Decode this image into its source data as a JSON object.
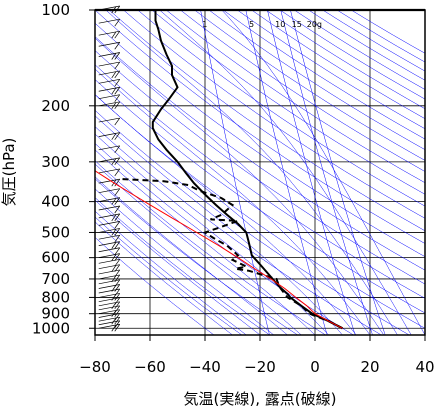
{
  "chart_data": {
    "type": "line",
    "xlabel": "気温(実線), 露点(破線)",
    "ylabel": "気圧(hPa)",
    "xlim": [
      -80,
      40
    ],
    "ylim": [
      1050,
      100
    ],
    "y_scale": "log",
    "grid": true,
    "x_ticks": [
      "−80",
      "−60",
      "−40",
      "−20",
      "0",
      "20",
      "40"
    ],
    "x_tick_values": [
      -80,
      -60,
      -40,
      -20,
      0,
      20,
      40
    ],
    "y_ticks": [
      "100",
      "200",
      "300",
      "400",
      "500",
      "600",
      "700",
      "800",
      "900",
      "1000"
    ],
    "y_tick_values": [
      100,
      200,
      300,
      400,
      500,
      600,
      700,
      800,
      900,
      1000
    ],
    "mixing_ratio_labels": [
      "1",
      "5",
      "10",
      "15",
      "20g"
    ],
    "series": [
      {
        "style": "solid",
        "color": "#000000",
        "points": [
          [
            10,
            1000
          ],
          [
            5,
            950
          ],
          [
            -1,
            900
          ],
          [
            -5,
            850
          ],
          [
            -9,
            800
          ],
          [
            -10,
            780
          ],
          [
            -13,
            740
          ],
          [
            -16,
            690
          ],
          [
            -20,
            630
          ],
          [
            -23,
            590
          ],
          [
            -24,
            540
          ],
          [
            -25,
            500
          ],
          [
            -28,
            470
          ],
          [
            -32,
            440
          ],
          [
            -36,
            410
          ],
          [
            -40,
            380
          ],
          [
            -44,
            350
          ],
          [
            -47,
            325
          ],
          [
            -50,
            300
          ],
          [
            -54,
            275
          ],
          [
            -57,
            255
          ],
          [
            -59,
            235
          ],
          [
            -59,
            225
          ],
          [
            -56,
            205
          ],
          [
            -53,
            190
          ],
          [
            -50,
            175
          ],
          [
            -52,
            160
          ],
          [
            -52,
            150
          ],
          [
            -54,
            138
          ],
          [
            -56,
            125
          ],
          [
            -57,
            115
          ],
          [
            -58,
            108
          ],
          [
            -58,
            100
          ]
        ]
      },
      {
        "style": "dashed",
        "color": "#000000",
        "points": [
          [
            10,
            1000
          ],
          [
            5,
            950
          ],
          [
            -2,
            900
          ],
          [
            -5,
            850
          ],
          [
            -10,
            800
          ],
          [
            -11,
            780
          ],
          [
            -13,
            740
          ],
          [
            -14,
            700
          ],
          [
            -19,
            680
          ],
          [
            -24,
            660
          ],
          [
            -29,
            650
          ],
          [
            -25,
            640
          ],
          [
            -30,
            610
          ],
          [
            -28,
            590
          ],
          [
            -32,
            550
          ],
          [
            -37,
            520
          ],
          [
            -40,
            500
          ],
          [
            -34,
            480
          ],
          [
            -28,
            460
          ],
          [
            -38,
            455
          ],
          [
            -34,
            440
          ],
          [
            -30,
            410
          ],
          [
            -34,
            390
          ],
          [
            -42,
            370
          ],
          [
            -46,
            355
          ],
          [
            -55,
            345
          ],
          [
            -70,
            340
          ]
        ]
      },
      {
        "style": "solid",
        "color": "#ff0000",
        "points": [
          [
            10,
            1000
          ],
          [
            5,
            950
          ],
          [
            0,
            900
          ],
          [
            -3,
            850
          ],
          [
            -7,
            800
          ],
          [
            -11,
            750
          ],
          [
            -16,
            700
          ],
          [
            -22,
            650
          ],
          [
            -28,
            600
          ],
          [
            -35,
            550
          ],
          [
            -43,
            500
          ],
          [
            -52,
            450
          ],
          [
            -62,
            400
          ],
          [
            -73,
            350
          ],
          [
            -80,
            320
          ]
        ]
      }
    ],
    "wind_barbs": {
      "x": -75,
      "pressures": [
        1000,
        975,
        950,
        925,
        900,
        875,
        850,
        825,
        800,
        775,
        750,
        725,
        700,
        675,
        650,
        625,
        600,
        575,
        550,
        525,
        500,
        475,
        450,
        425,
        400,
        375,
        350,
        325,
        300,
        275,
        250,
        225,
        200,
        190,
        180,
        170,
        160,
        150,
        140,
        130,
        120,
        110,
        100
      ]
    },
    "colors": {
      "background": "#ffffff",
      "frame": "#000000",
      "grid": "#000000",
      "background_lines": "#0000ff",
      "temperature": "#000000",
      "dewpoint": "#000000",
      "parcel": "#ff0000"
    }
  }
}
